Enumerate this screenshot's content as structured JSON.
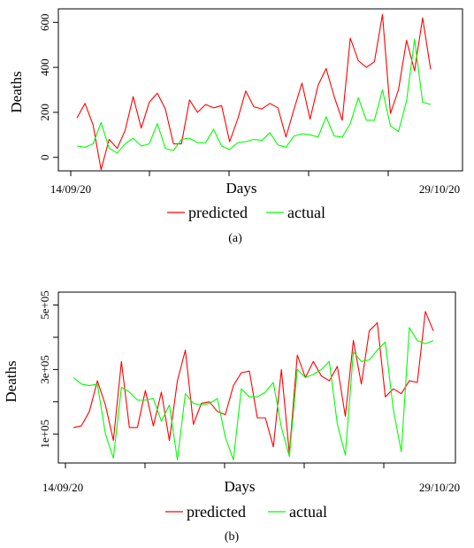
{
  "chart_data": [
    {
      "id": "a",
      "type": "line",
      "caption": "(a)",
      "xlabel": "Days",
      "ylabel": "Deaths",
      "x_start_label": "14/09/20",
      "x_end_label": "29/10/20",
      "x_range": [
        "14/09/20",
        "29/10/20"
      ],
      "ylim": [
        -60,
        660
      ],
      "yticks": [
        0,
        200,
        400,
        600
      ],
      "ytick_labels": [
        "0",
        "200",
        "400",
        "600"
      ],
      "grid": false,
      "legend_position": "bottom",
      "series": [
        {
          "name": "predicted",
          "color": "#ff0000",
          "values": [
            175,
            240,
            145,
            -55,
            80,
            40,
            120,
            270,
            130,
            245,
            285,
            215,
            60,
            60,
            255,
            200,
            235,
            220,
            230,
            70,
            170,
            295,
            225,
            215,
            240,
            220,
            90,
            215,
            330,
            170,
            320,
            395,
            270,
            165,
            530,
            430,
            400,
            425,
            635,
            195,
            300,
            520,
            385,
            620,
            390
          ]
        },
        {
          "name": "actual",
          "color": "#00ff00",
          "values": [
            50,
            45,
            60,
            155,
            40,
            20,
            60,
            85,
            50,
            60,
            150,
            40,
            30,
            80,
            85,
            65,
            65,
            125,
            50,
            35,
            65,
            70,
            80,
            75,
            110,
            55,
            45,
            95,
            105,
            100,
            90,
            180,
            95,
            90,
            150,
            265,
            165,
            165,
            300,
            140,
            115,
            250,
            525,
            245,
            235
          ]
        }
      ]
    },
    {
      "id": "b",
      "type": "line",
      "caption": "(b)",
      "xlabel": "Days",
      "ylabel": "Deaths",
      "x_start_label": "14/09/20",
      "x_end_label": "29/10/20",
      "x_range": [
        "14/09/20",
        "29/10/20"
      ],
      "ylim": [
        10000,
        540000
      ],
      "yticks": [
        100000,
        200000,
        300000,
        400000,
        500000
      ],
      "ytick_labels": [
        "1e+05",
        "",
        "3e+05",
        "",
        "5e+05"
      ],
      "grid": false,
      "legend_position": "bottom",
      "series": [
        {
          "name": "predicted",
          "color": "#ff0000",
          "values": [
            120000,
            125000,
            170000,
            265000,
            190000,
            80000,
            325000,
            120000,
            120000,
            235000,
            125000,
            230000,
            80000,
            265000,
            360000,
            130000,
            195000,
            200000,
            170000,
            160000,
            250000,
            290000,
            295000,
            150000,
            150000,
            60000,
            300000,
            40000,
            345000,
            275000,
            325000,
            280000,
            265000,
            310000,
            155000,
            390000,
            255000,
            420000,
            445000,
            215000,
            240000,
            225000,
            265000,
            260000,
            480000,
            420000
          ]
        },
        {
          "name": "actual",
          "color": "#00ff00",
          "values": [
            275000,
            255000,
            250000,
            255000,
            100000,
            25000,
            245000,
            230000,
            205000,
            205000,
            210000,
            140000,
            190000,
            20000,
            225000,
            195000,
            190000,
            195000,
            210000,
            90000,
            20000,
            240000,
            215000,
            215000,
            230000,
            260000,
            120000,
            30000,
            300000,
            275000,
            285000,
            300000,
            325000,
            130000,
            35000,
            355000,
            325000,
            330000,
            360000,
            385000,
            175000,
            45000,
            430000,
            390000,
            380000,
            390000
          ]
        }
      ]
    }
  ]
}
